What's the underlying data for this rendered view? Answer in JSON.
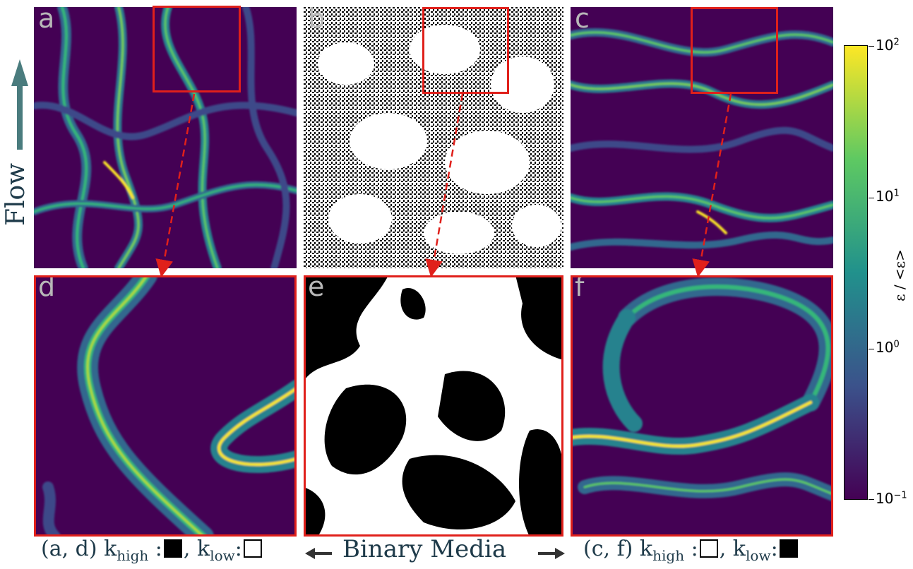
{
  "panels": {
    "a": {
      "label": "a"
    },
    "b": {
      "label": "b"
    },
    "c": {
      "label": "c"
    },
    "d": {
      "label": "d"
    },
    "e": {
      "label": "e"
    },
    "f": {
      "label": "f"
    }
  },
  "flow_label": "Flow",
  "captions": {
    "left": {
      "prefix": "(a, d) k",
      "sub_high": "high",
      "sep": " :",
      "mid": ", k",
      "sub_low": "low",
      "colon": ":"
    },
    "center": "Binary Media",
    "right": {
      "prefix": "(c, f) k",
      "sub_high": "high",
      "sep": " :",
      "mid": ", k",
      "sub_low": "low",
      "colon": ":"
    }
  },
  "colorbar": {
    "label": "ε / <ε>",
    "ticks": [
      {
        "base": "10",
        "exp": "2"
      },
      {
        "base": "10",
        "exp": "1"
      },
      {
        "base": "10",
        "exp": "0"
      },
      {
        "base": "10",
        "exp": "−1"
      }
    ],
    "scale": "log",
    "range": [
      0.1,
      100
    ],
    "colormap": [
      "#440154",
      "#3b528b",
      "#21918c",
      "#5ec962",
      "#fde725"
    ]
  },
  "colors": {
    "highlight_box": "#e0201b",
    "arrow": "#e0201b",
    "flow_arrow": "#4a7c7e",
    "background_field": "#440154"
  }
}
